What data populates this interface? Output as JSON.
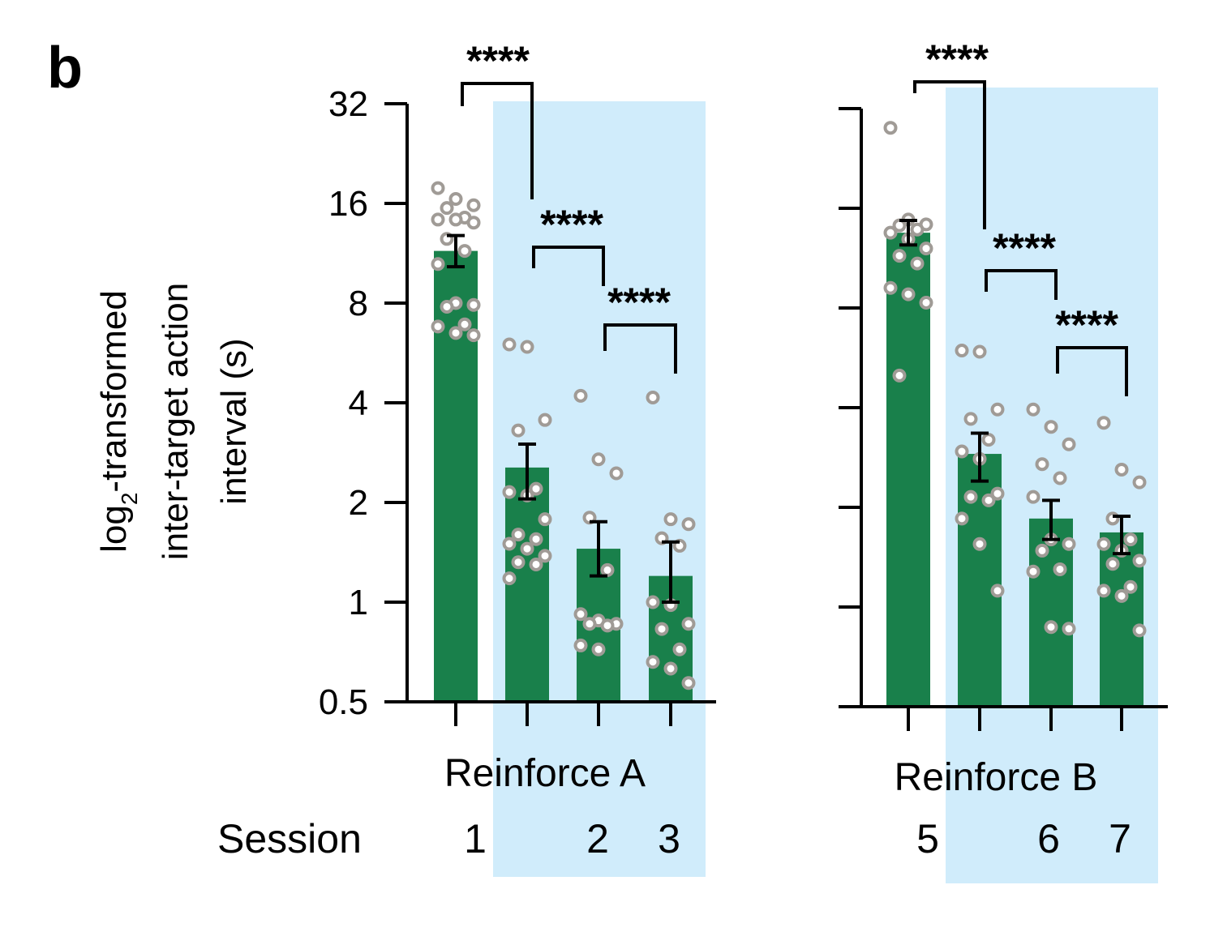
{
  "panel_label": "b",
  "colors": {
    "bar": "#19804b",
    "highlight": "#d0ecfb",
    "point": "#a09b96",
    "axis": "#000000"
  },
  "chart_data": [
    {
      "type": "bar",
      "group_label": "Reinforce A",
      "session_row_label": "Session",
      "categories": [
        "1",
        "",
        "2",
        "3"
      ],
      "yscale": "log2",
      "ylim": [
        0.5,
        32
      ],
      "yticks": [
        "0.5",
        "1",
        "2",
        "4",
        "8",
        "16",
        "32"
      ],
      "ylabel_lines": [
        "log",
        "2",
        "-transformed",
        "inter-target action",
        "interval (s)"
      ],
      "values": [
        11.5,
        2.55,
        1.45,
        1.2
      ],
      "error_low": [
        10.3,
        2.05,
        1.2,
        1.0
      ],
      "error_high": [
        12.8,
        3.0,
        1.75,
        1.52
      ],
      "points": [
        [
          17.8,
          16.5,
          15.8,
          15.5,
          14.5,
          14.3,
          14.3,
          14.0,
          12.5,
          11.5,
          10.5,
          8.0,
          7.9,
          7.8,
          6.9,
          6.8,
          6.5,
          6.4
        ],
        [
          6.0,
          5.9,
          3.55,
          3.3,
          2.2,
          2.15,
          2.1,
          1.78,
          1.6,
          1.55,
          1.5,
          1.45,
          1.38,
          1.32,
          1.3,
          1.18
        ],
        [
          4.2,
          2.7,
          2.45,
          1.8,
          1.25,
          0.92,
          0.88,
          0.86,
          0.86,
          0.85,
          0.74,
          0.72
        ],
        [
          4.15,
          1.78,
          1.72,
          1.56,
          1.48,
          1.0,
          0.98,
          0.86,
          0.83,
          0.72,
          0.66,
          0.63,
          0.57
        ]
      ],
      "comparisons": [
        {
          "from": 0,
          "to": 1,
          "label": "****"
        },
        {
          "from": 1,
          "to": 2,
          "label": "****"
        },
        {
          "from": 2,
          "to": 3,
          "label": "****"
        }
      ]
    },
    {
      "type": "bar",
      "group_label": "Reinforce B",
      "categories": [
        "5",
        "",
        "6",
        "7"
      ],
      "yscale": "log2",
      "ylim": [
        0.5,
        32
      ],
      "values": [
        13.5,
        2.9,
        1.85,
        1.68
      ],
      "error_low": [
        12.4,
        2.4,
        1.6,
        1.45
      ],
      "error_high": [
        14.7,
        3.35,
        2.1,
        1.88
      ],
      "points": [
        [
          28.0,
          14.8,
          14.3,
          14.2,
          13.8,
          13.5,
          12.9,
          12.1,
          11.5,
          10.9,
          9.2,
          8.8,
          8.3,
          5.0
        ],
        [
          5.95,
          5.9,
          3.95,
          3.7,
          3.2,
          2.95,
          2.8,
          2.2,
          2.15,
          2.1,
          1.85,
          1.55,
          1.12
        ],
        [
          3.95,
          3.5,
          3.1,
          2.7,
          2.45,
          2.15,
          1.6,
          1.55,
          1.48,
          1.3,
          1.28,
          0.87,
          0.86
        ],
        [
          3.6,
          2.6,
          2.38,
          1.85,
          1.6,
          1.55,
          1.48,
          1.38,
          1.35,
          1.15,
          1.12,
          1.08,
          0.85
        ]
      ],
      "comparisons": [
        {
          "from": 0,
          "to": 1,
          "label": "****"
        },
        {
          "from": 1,
          "to": 2,
          "label": "****"
        },
        {
          "from": 2,
          "to": 3,
          "label": "****"
        }
      ]
    }
  ]
}
